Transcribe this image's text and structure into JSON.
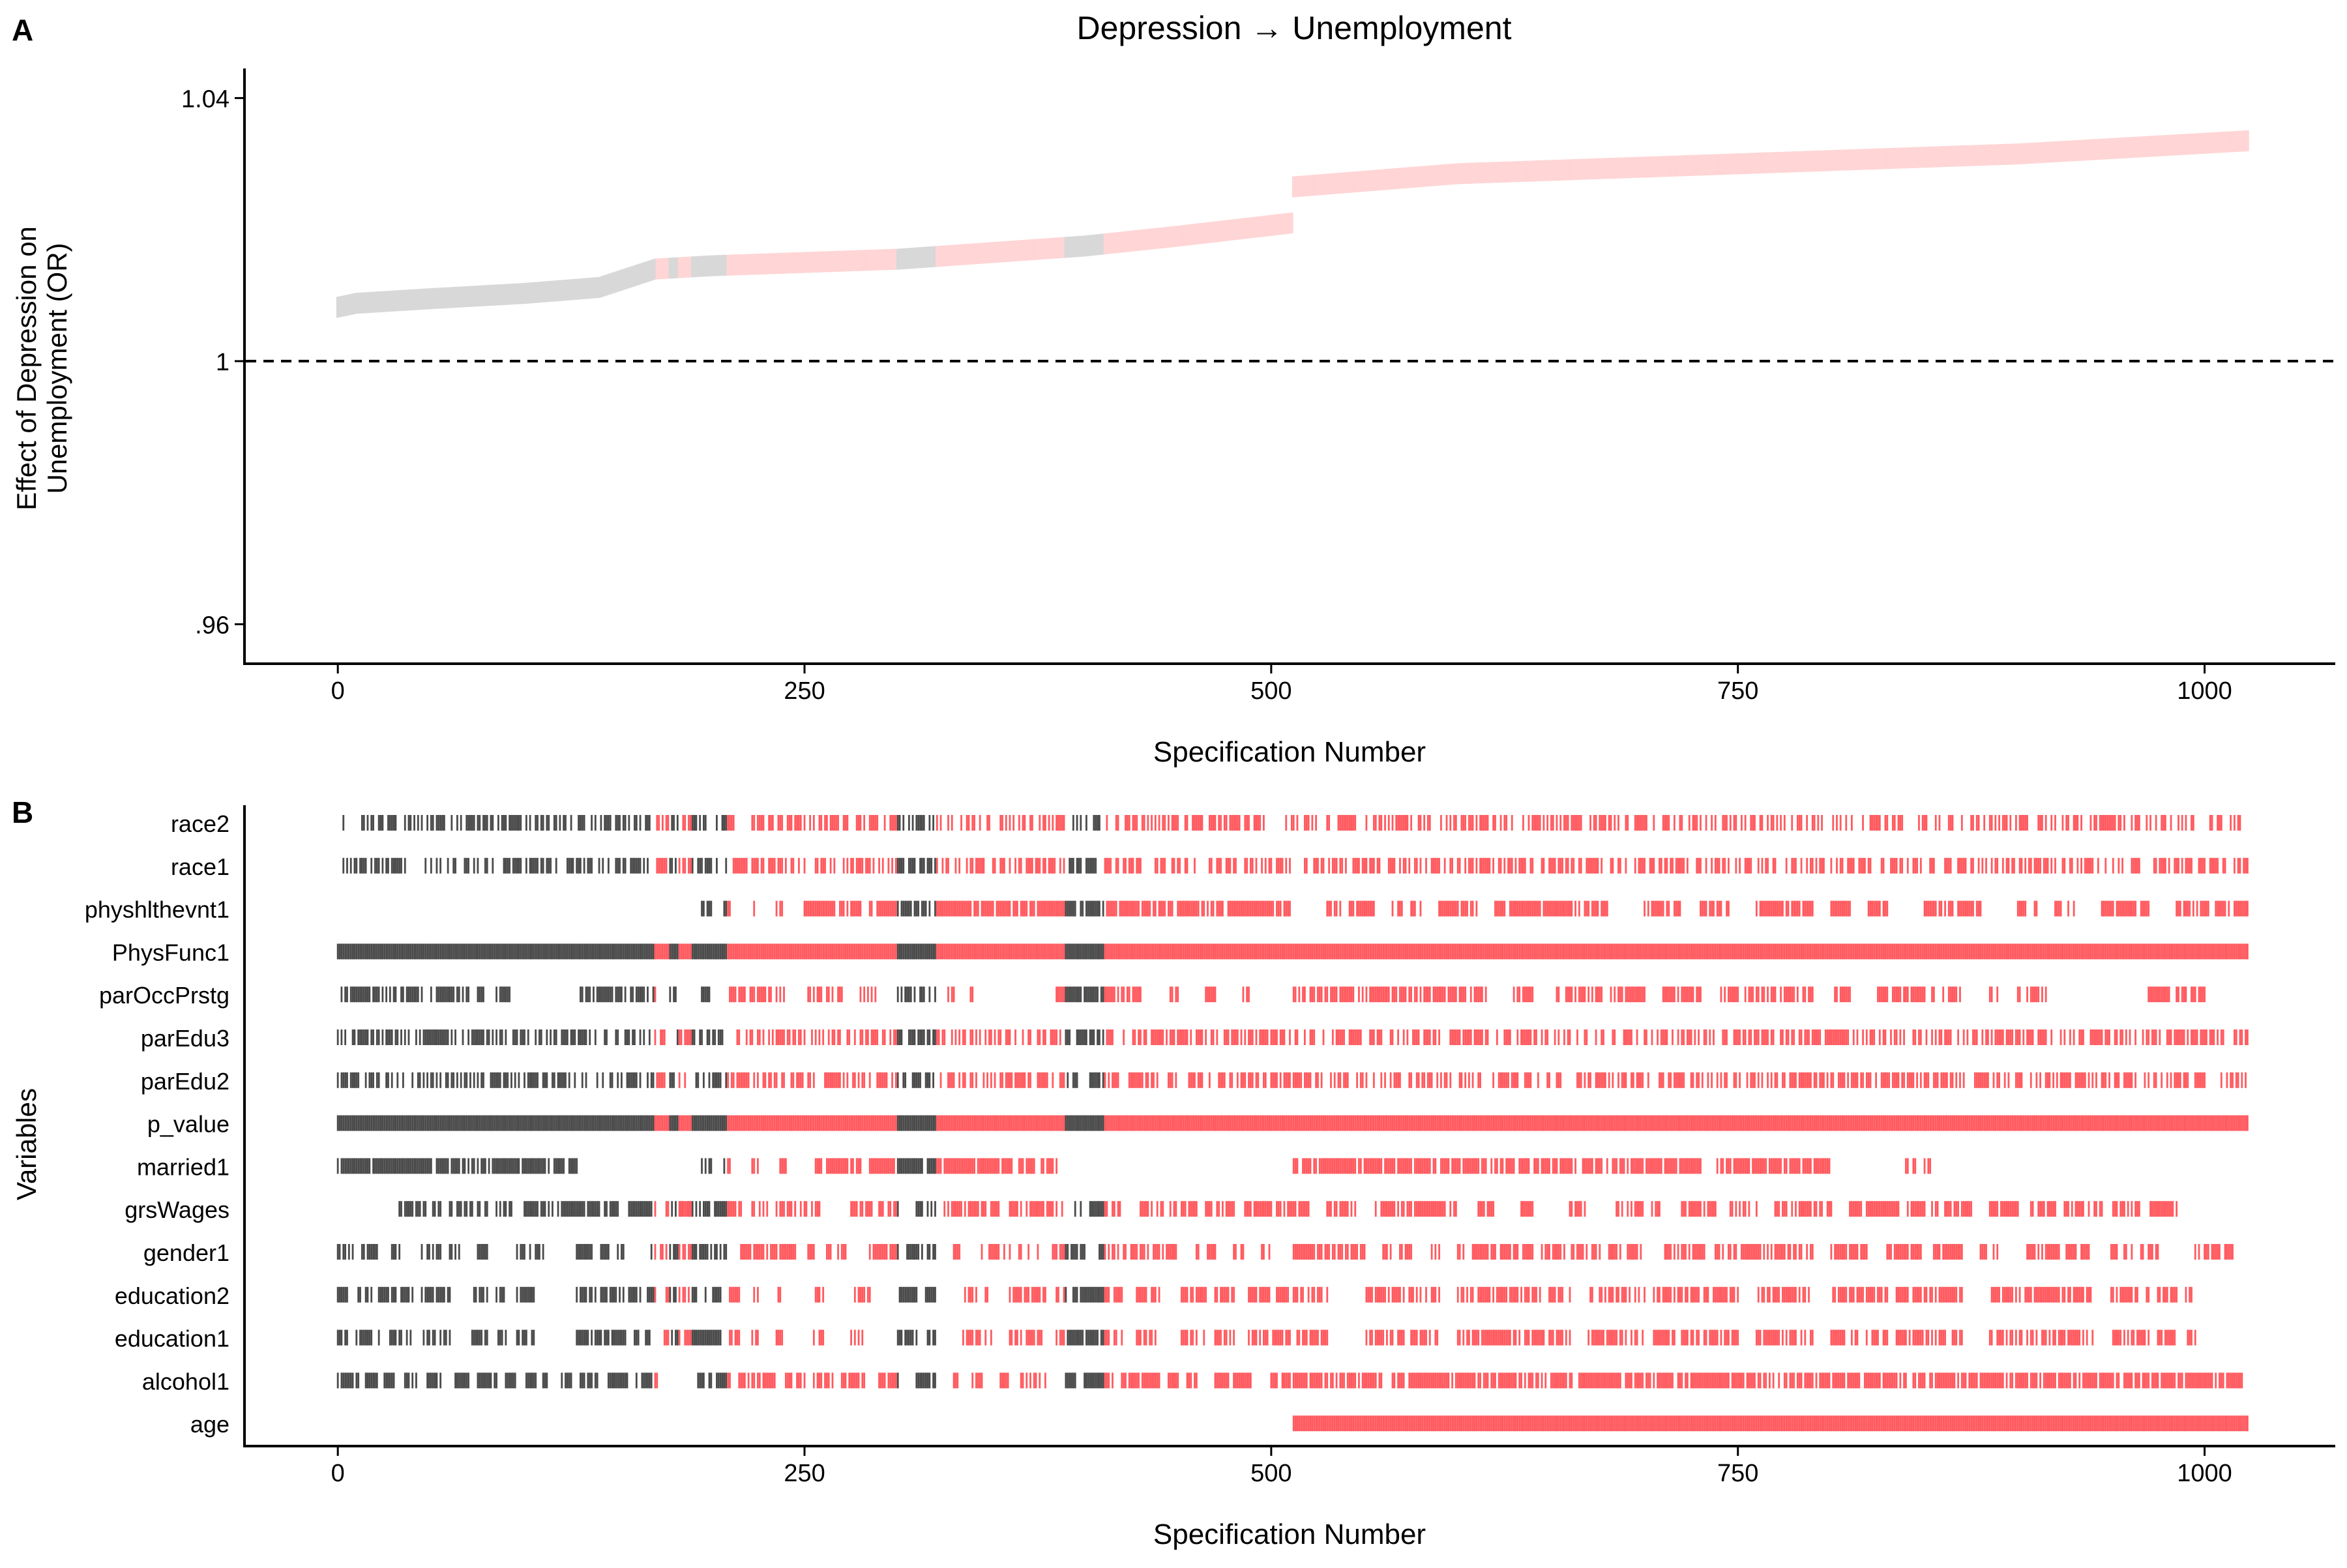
{
  "panels": {
    "a_label": "A",
    "b_label": "B"
  },
  "chart_data": [
    {
      "panel": "A",
      "type": "scatter",
      "title": "Depression → Unemployment",
      "xlabel": "Specification Number",
      "ylabel_lines": [
        "Effect of Depression on",
        "Unemployment (OR)"
      ],
      "x_ticks": [
        0,
        250,
        500,
        750,
        1000
      ],
      "y_ticks": [
        {
          "value": 0.96,
          "label": ".96"
        },
        {
          "value": 1.0,
          "label": "1"
        },
        {
          "value": 1.04,
          "label": "1.04"
        }
      ],
      "xlim": [
        -50,
        1070
      ],
      "ylim": [
        0.954,
        1.0445
      ],
      "reference_line": 1.0,
      "n_specifications": 1024,
      "curve": [
        [
          0,
          1.0082
        ],
        [
          10,
          1.0088
        ],
        [
          50,
          1.0095
        ],
        [
          100,
          1.0103
        ],
        [
          140,
          1.0112
        ],
        [
          170,
          1.014
        ],
        [
          200,
          1.0145
        ],
        [
          300,
          1.0155
        ],
        [
          400,
          1.0175
        ],
        [
          450,
          1.019
        ],
        [
          511,
          1.021
        ],
        [
          512,
          1.0265
        ],
        [
          600,
          1.0285
        ],
        [
          750,
          1.03
        ],
        [
          900,
          1.0315
        ],
        [
          1023,
          1.0335
        ]
      ],
      "colors": {
        "significant": "#ffd5d5",
        "not_significant": "#d8d8d8"
      },
      "nonsignificant_ranges": [
        [
          0,
          170
        ],
        [
          178,
          182
        ],
        [
          190,
          208
        ],
        [
          300,
          320
        ],
        [
          390,
          410
        ]
      ]
    },
    {
      "panel": "B",
      "type": "heatmap",
      "xlabel": "Specification Number",
      "ylabel": "Variables",
      "x_ticks": [
        0,
        250,
        500,
        750,
        1000
      ],
      "xlim": [
        -50,
        1070
      ],
      "variables": [
        "race2",
        "race1",
        "physhlthevnt1",
        "PhysFunc1",
        "parOccPrstg",
        "parEdu3",
        "parEdu2",
        "p_value",
        "married1",
        "grsWages",
        "gender1",
        "education2",
        "education1",
        "alcohol1",
        "age"
      ],
      "colors": {
        "significant": "#ff5a5f",
        "not_significant": "#4a4a4a"
      },
      "rows": {
        "race2": {
          "ranges": [
            [
              3,
              1023
            ]
          ],
          "gap": 0.48
        },
        "race1": {
          "ranges": [
            [
              3,
              1023
            ]
          ],
          "gap": 0.48
        },
        "physhlthevnt1": {
          "ranges": [
            [
              195,
              200
            ],
            [
              207,
              210
            ],
            [
              222,
              225
            ],
            [
              235,
              238
            ],
            [
              250,
              280
            ],
            [
              285,
              510
            ],
            [
              530,
              537
            ],
            [
              542,
              555
            ],
            [
              565,
              570
            ],
            [
              575,
              580
            ],
            [
              590,
              610
            ],
            [
              620,
              680
            ],
            [
              700,
              720
            ],
            [
              730,
              745
            ],
            [
              760,
              790
            ],
            [
              800,
              810
            ],
            [
              820,
              830
            ],
            [
              850,
              880
            ],
            [
              900,
              910
            ],
            [
              920,
              930
            ],
            [
              945,
              970
            ],
            [
              985,
              1023
            ]
          ],
          "gap": 0.2
        },
        "PhysFunc1": {
          "ranges": [
            [
              0,
              1023
            ]
          ],
          "gap": 0.0
        },
        "parOccPrstg": {
          "ranges": [
            [
              0,
              45
            ],
            [
              50,
              80
            ],
            [
              85,
              92
            ],
            [
              128,
              158
            ],
            [
              160,
              170
            ],
            [
              178,
              182
            ],
            [
              195,
              200
            ],
            [
              210,
              240
            ],
            [
              250,
              270
            ],
            [
              278,
              290
            ],
            [
              300,
              320
            ],
            [
              325,
              330
            ],
            [
              338,
              340
            ],
            [
              385,
              430
            ],
            [
              445,
              450
            ],
            [
              465,
              470
            ],
            [
              485,
              490
            ],
            [
              512,
              620
            ],
            [
              630,
              640
            ],
            [
              650,
              700
            ],
            [
              710,
              730
            ],
            [
              740,
              790
            ],
            [
              800,
              810
            ],
            [
              825,
              855
            ],
            [
              860,
              870
            ],
            [
              885,
              890
            ],
            [
              900,
              915
            ],
            [
              970,
              1000
            ]
          ],
          "gap": 0.3
        },
        "parEdu3": {
          "ranges": [
            [
              0,
              1023
            ]
          ],
          "gap": 0.45
        },
        "parEdu2": {
          "ranges": [
            [
              0,
              1023
            ]
          ],
          "gap": 0.45
        },
        "p_value": {
          "ranges": [
            [
              0,
              1023
            ]
          ],
          "gap": 0.0
        },
        "married1": {
          "ranges": [
            [
              0,
              128
            ],
            [
              195,
              200
            ],
            [
              207,
              210
            ],
            [
              222,
              225
            ],
            [
              237,
              240
            ],
            [
              255,
              280
            ],
            [
              285,
              385
            ],
            [
              512,
              730
            ],
            [
              738,
              800
            ],
            [
              840,
              845
            ],
            [
              850,
              853
            ]
          ],
          "gap": 0.15
        },
        "grsWages": {
          "ranges": [
            [
              32,
              55
            ],
            [
              60,
              80
            ],
            [
              85,
              95
            ],
            [
              100,
              115
            ],
            [
              118,
              150
            ],
            [
              155,
              170
            ],
            [
              175,
              180
            ],
            [
              183,
              190
            ],
            [
              180,
              230
            ],
            [
              235,
              245
            ],
            [
              245,
              260
            ],
            [
              275,
              300
            ],
            [
              310,
              320
            ],
            [
              325,
              355
            ],
            [
              360,
              390
            ],
            [
              395,
              420
            ],
            [
              430,
              460
            ],
            [
              465,
              480
            ],
            [
              485,
              520
            ],
            [
              530,
              545
            ],
            [
              555,
              600
            ],
            [
              610,
              620
            ],
            [
              630,
              640
            ],
            [
              660,
              670
            ],
            [
              685,
              710
            ],
            [
              720,
              740
            ],
            [
              745,
              760
            ],
            [
              770,
              800
            ],
            [
              810,
              875
            ],
            [
              885,
              900
            ],
            [
              905,
              920
            ],
            [
              925,
              945
            ],
            [
              950,
              965
            ],
            [
              970,
              985
            ]
          ],
          "gap": 0.3
        },
        "gender1": {
          "ranges": [
            [
              0,
              8
            ],
            [
              12,
              25
            ],
            [
              28,
              33
            ],
            [
              45,
              55
            ],
            [
              60,
              65
            ],
            [
              75,
              80
            ],
            [
              95,
              110
            ],
            [
              128,
              145
            ],
            [
              150,
              155
            ],
            [
              168,
              210
            ],
            [
              215,
              230
            ],
            [
              232,
              245
            ],
            [
              250,
              255
            ],
            [
              262,
              275
            ],
            [
              285,
              300
            ],
            [
              305,
              320
            ],
            [
              330,
              335
            ],
            [
              345,
              360
            ],
            [
              365,
              375
            ],
            [
              382,
              400
            ],
            [
              408,
              450
            ],
            [
              460,
              470
            ],
            [
              480,
              485
            ],
            [
              495,
              500
            ],
            [
              512,
              550
            ],
            [
              560,
              575
            ],
            [
              585,
              590
            ],
            [
              600,
              640
            ],
            [
              645,
              700
            ],
            [
              710,
              790
            ],
            [
              800,
              820
            ],
            [
              830,
              870
            ],
            [
              880,
              890
            ],
            [
              905,
              940
            ],
            [
              950,
              975
            ],
            [
              995,
              1015
            ]
          ],
          "gap": 0.3
        },
        "education2": {
          "ranges": [
            [
              0,
              5
            ],
            [
              10,
              18
            ],
            [
              22,
              40
            ],
            [
              45,
              60
            ],
            [
              72,
              80
            ],
            [
              85,
              90
            ],
            [
              95,
              105
            ],
            [
              128,
              170
            ],
            [
              175,
              205
            ],
            [
              210,
              215
            ],
            [
              220,
              225
            ],
            [
              235,
              238
            ],
            [
              255,
              260
            ],
            [
              275,
              285
            ],
            [
              300,
              310
            ],
            [
              315,
              320
            ],
            [
              335,
              350
            ],
            [
              360,
              380
            ],
            [
              385,
              420
            ],
            [
              428,
              440
            ],
            [
              452,
              465
            ],
            [
              470,
              480
            ],
            [
              488,
              510
            ],
            [
              512,
              530
            ],
            [
              550,
              590
            ],
            [
              600,
              660
            ],
            [
              670,
              700
            ],
            [
              705,
              750
            ],
            [
              760,
              790
            ],
            [
              800,
              830
            ],
            [
              835,
              870
            ],
            [
              885,
              940
            ],
            [
              950,
              970
            ],
            [
              975,
              985
            ],
            [
              990,
              995
            ]
          ],
          "gap": 0.3
        },
        "education1": {
          "ranges": [
            [
              0,
              5
            ],
            [
              10,
              18
            ],
            [
              22,
              40
            ],
            [
              45,
              60
            ],
            [
              72,
              80
            ],
            [
              85,
              90
            ],
            [
              95,
              105
            ],
            [
              128,
              170
            ],
            [
              175,
              205
            ],
            [
              210,
              215
            ],
            [
              220,
              225
            ],
            [
              235,
              238
            ],
            [
              255,
              260
            ],
            [
              275,
              285
            ],
            [
              300,
              310
            ],
            [
              315,
              320
            ],
            [
              335,
              350
            ],
            [
              360,
              380
            ],
            [
              385,
              420
            ],
            [
              428,
              440
            ],
            [
              452,
              465
            ],
            [
              470,
              480
            ],
            [
              488,
              510
            ],
            [
              512,
              530
            ],
            [
              550,
              590
            ],
            [
              600,
              660
            ],
            [
              670,
              700
            ],
            [
              705,
              750
            ],
            [
              760,
              790
            ],
            [
              800,
              830
            ],
            [
              835,
              870
            ],
            [
              885,
              940
            ],
            [
              950,
              970
            ],
            [
              975,
              985
            ],
            [
              990,
              995
            ]
          ],
          "gap": 0.3
        },
        "alcohol1": {
          "ranges": [
            [
              0,
              12
            ],
            [
              15,
              22
            ],
            [
              25,
              30
            ],
            [
              35,
              42
            ],
            [
              48,
              55
            ],
            [
              62,
              70
            ],
            [
              75,
              85
            ],
            [
              90,
              95
            ],
            [
              100,
              112
            ],
            [
              118,
              125
            ],
            [
              130,
              140
            ],
            [
              145,
              155
            ],
            [
              160,
              172
            ],
            [
              192,
              210
            ],
            [
              215,
              235
            ],
            [
              240,
              250
            ],
            [
              255,
              265
            ],
            [
              270,
              282
            ],
            [
              290,
              300
            ],
            [
              310,
              320
            ],
            [
              328,
              332
            ],
            [
              340,
              345
            ],
            [
              355,
              360
            ],
            [
              365,
              380
            ],
            [
              390,
              395
            ],
            [
              400,
              415
            ],
            [
              420,
              440
            ],
            [
              445,
              450
            ],
            [
              455,
              460
            ],
            [
              470,
              490
            ],
            [
              500,
              510
            ],
            [
              512,
              1020
            ]
          ],
          "gap": 0.2
        },
        "age": {
          "ranges": [
            [
              512,
              1023
            ]
          ],
          "gap": 0.0
        }
      }
    }
  ]
}
